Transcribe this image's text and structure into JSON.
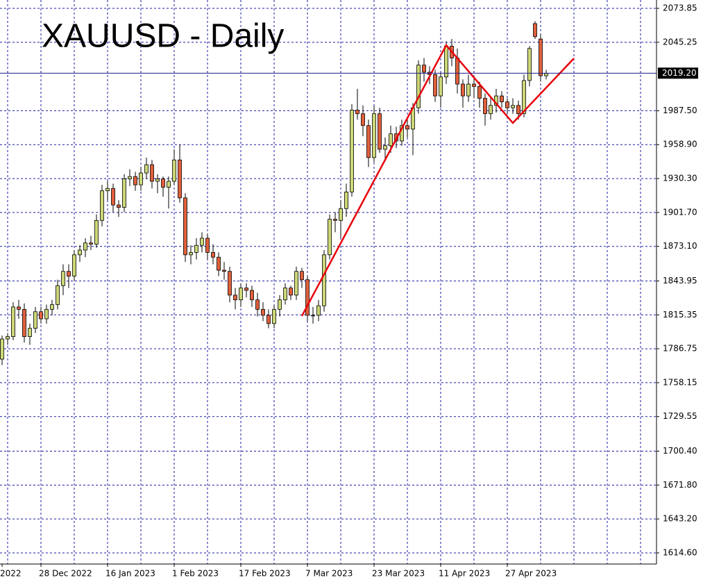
{
  "chart_data": {
    "type": "candlestick",
    "title": "XAUUSD - Daily",
    "categories": [
      "2022",
      null,
      null,
      null,
      null,
      null,
      null,
      "28 Dec 2022",
      null,
      null,
      null,
      null,
      null,
      null,
      null,
      null,
      null,
      null,
      null,
      "16 Jan 2023",
      null,
      null,
      null,
      null,
      null,
      null,
      null,
      null,
      null,
      null,
      null,
      "1 Feb 2023",
      null,
      null,
      null,
      null,
      null,
      null,
      null,
      null,
      null,
      null,
      null,
      "17 Feb 2023",
      null,
      null,
      null,
      null,
      null,
      null,
      null,
      null,
      null,
      null,
      null,
      "7 Mar 2023",
      null,
      null,
      null,
      null,
      null,
      null,
      null,
      null,
      null,
      null,
      null,
      "23 Mar 2023",
      null,
      null,
      null,
      null,
      null,
      null,
      null,
      null,
      null,
      null,
      null,
      "11 Apr 2023",
      null,
      null,
      null,
      null,
      null,
      null,
      null,
      null,
      null,
      null,
      null,
      "27 Apr 2023",
      null,
      null,
      null,
      null,
      null,
      null,
      null
    ],
    "open": [
      1778,
      1795,
      1797,
      1822,
      1820,
      1797,
      1804,
      1818,
      1812,
      1820,
      1824,
      1840,
      1852,
      1848,
      1866,
      1870,
      1876,
      1875,
      1895,
      1920,
      1922,
      1908,
      1906,
      1930,
      1932,
      1925,
      1935,
      1942,
      1928,
      1930,
      1923,
      1928,
      1946,
      1914,
      1866,
      1868,
      1874,
      1880,
      1868,
      1864,
      1853,
      1852,
      1832,
      1828,
      1838,
      1836,
      1828,
      1820,
      1815,
      1808,
      1820,
      1828,
      1838,
      1832,
      1852,
      1845,
      1815,
      1815,
      1823,
      1866,
      1896,
      1895,
      1905,
      1919,
      1988,
      1985,
      1975,
      1948,
      1985,
      1955,
      1958,
      1968,
      1962,
      1975,
      1972,
      1990,
      2026,
      2020,
      2018,
      2000,
      2016,
      2042,
      2032,
      2010,
      2000,
      2010,
      2008,
      1998,
      1985,
      1992,
      2000,
      1995,
      1990,
      1992,
      1985,
      2013,
      2061,
      2048,
      2017
    ],
    "high": [
      1798,
      1800,
      1826,
      1828,
      1825,
      1808,
      1822,
      1822,
      1824,
      1828,
      1845,
      1858,
      1858,
      1870,
      1874,
      1880,
      1882,
      1900,
      1925,
      1928,
      1926,
      1912,
      1934,
      1938,
      1936,
      1940,
      1948,
      1946,
      1934,
      1932,
      1932,
      1955,
      1959,
      1918,
      1874,
      1880,
      1885,
      1884,
      1875,
      1868,
      1860,
      1856,
      1838,
      1842,
      1842,
      1840,
      1834,
      1826,
      1820,
      1824,
      1832,
      1842,
      1840,
      1856,
      1855,
      1848,
      1822,
      1828,
      1870,
      1900,
      1902,
      1912,
      1926,
      1993,
      2006,
      1992,
      1980,
      1992,
      1990,
      1965,
      1975,
      1974,
      1980,
      1980,
      1994,
      2030,
      2032,
      2025,
      2022,
      2020,
      2046,
      2048,
      2040,
      2014,
      2018,
      2015,
      2012,
      2002,
      1998,
      2006,
      2004,
      1998,
      1998,
      1996,
      2018,
      2042,
      2063,
      2052,
      2022
    ],
    "low": [
      1773,
      1790,
      1794,
      1812,
      1792,
      1790,
      1800,
      1808,
      1808,
      1815,
      1820,
      1832,
      1838,
      1844,
      1860,
      1864,
      1870,
      1872,
      1890,
      1912,
      1902,
      1898,
      1902,
      1924,
      1920,
      1920,
      1930,
      1922,
      1918,
      1915,
      1905,
      1925,
      1910,
      1860,
      1858,
      1862,
      1868,
      1862,
      1858,
      1848,
      1845,
      1826,
      1820,
      1822,
      1830,
      1822,
      1814,
      1810,
      1804,
      1804,
      1814,
      1824,
      1828,
      1828,
      1838,
      1810,
      1808,
      1810,
      1818,
      1862,
      1885,
      1880,
      1898,
      1915,
      1980,
      1966,
      1940,
      1944,
      1952,
      1946,
      1952,
      1956,
      1958,
      1965,
      1950,
      1985,
      2012,
      2010,
      1995,
      1990,
      2010,
      2025,
      2002,
      1990,
      1995,
      1998,
      1990,
      1975,
      1980,
      1986,
      1990,
      1985,
      1985,
      1980,
      1982,
      2008,
      2048,
      2012,
      2014
    ],
    "close": [
      1795,
      1797,
      1822,
      1820,
      1797,
      1804,
      1818,
      1812,
      1820,
      1824,
      1840,
      1852,
      1848,
      1866,
      1870,
      1876,
      1875,
      1895,
      1920,
      1922,
      1908,
      1906,
      1930,
      1932,
      1925,
      1935,
      1942,
      1928,
      1930,
      1923,
      1928,
      1946,
      1914,
      1866,
      1868,
      1874,
      1880,
      1868,
      1864,
      1853,
      1852,
      1832,
      1828,
      1838,
      1836,
      1828,
      1820,
      1815,
      1808,
      1820,
      1828,
      1838,
      1832,
      1852,
      1845,
      1815,
      1815,
      1823,
      1866,
      1896,
      1895,
      1905,
      1919,
      1988,
      1985,
      1975,
      1948,
      1985,
      1955,
      1958,
      1968,
      1962,
      1975,
      1972,
      1990,
      2026,
      2020,
      2018,
      2000,
      2016,
      2042,
      2032,
      2010,
      2000,
      2010,
      2008,
      1998,
      1985,
      1992,
      2000,
      1995,
      1990,
      1992,
      1985,
      2013,
      2040,
      2050,
      2017,
      2019
    ],
    "up_color": "#cdd878",
    "down_color": "#e0603c",
    "ylim": [
      1605.2,
      2080.9
    ],
    "yticks": [
      2073.85,
      2045.25,
      {
        "value": 1987.5,
        "label": "1987.50"
      },
      {
        "value": 1958.9,
        "label": "1958.90"
      },
      {
        "value": 1930.3,
        "label": "1930.30"
      },
      {
        "value": 1901.7,
        "label": "1901.70"
      },
      {
        "value": 1873.1,
        "label": "1873.10"
      },
      1843.95,
      1815.35,
      1786.75,
      1758.15,
      1729.55,
      {
        "value": 1700.4,
        "label": "1700.40"
      },
      {
        "value": 1671.8,
        "label": "1671.80"
      },
      {
        "value": 1643.2,
        "label": "1643.20"
      },
      {
        "value": 1614.6,
        "label": "1614.60"
      }
    ],
    "grid": true,
    "current_price": {
      "value": 2019.2,
      "label": "2019.20"
    },
    "trendline": {
      "color": "#e8000b",
      "x": [
        54,
        80,
        92,
        103
      ],
      "y": [
        1814.4,
        2042.8,
        1977.2,
        2031.7
      ]
    }
  }
}
